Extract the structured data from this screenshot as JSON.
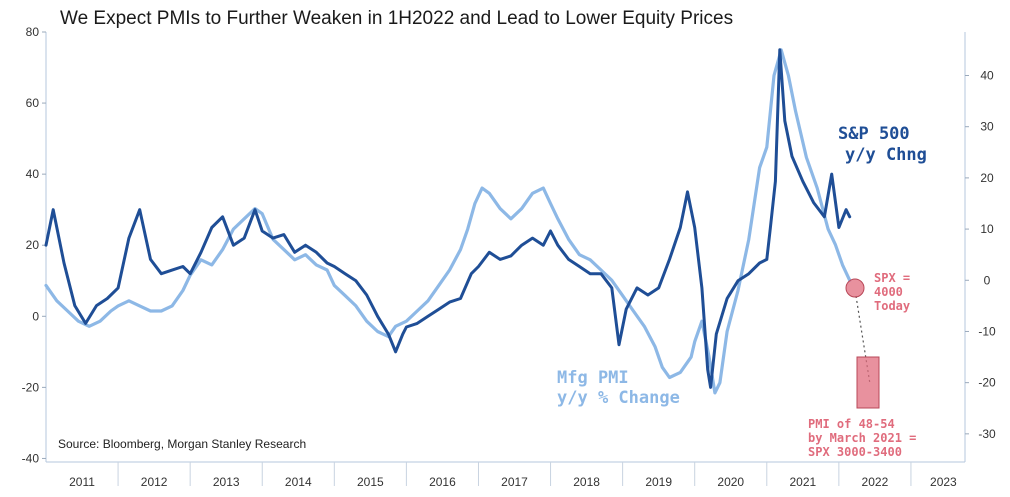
{
  "chart_data": {
    "type": "line",
    "title": "We Expect PMIs to Further Weaken in 1H2022 and Lead to Lower Equity Prices",
    "source": "Source: Bloomberg, Morgan Stanley Research",
    "x_ticks": [
      "2011",
      "2012",
      "2013",
      "2014",
      "2015",
      "2016",
      "2017",
      "2018",
      "2019",
      "2020",
      "2021",
      "2022",
      "2023"
    ],
    "x_range": [
      2011,
      2023.75
    ],
    "y_left": {
      "ticks": [
        80,
        60,
        40,
        20,
        0,
        -20,
        -40
      ],
      "range": [
        -41,
        80
      ]
    },
    "y_right": {
      "ticks": [
        40,
        30,
        20,
        10,
        0,
        -10,
        -20,
        -30
      ],
      "range": [
        -35.5,
        48.5
      ]
    },
    "series": [
      {
        "name": "S&P 500 y/y Chng",
        "label_lines": [
          "S&P 500",
          "y/y Chng"
        ],
        "axis": "left",
        "color": "#1f4e96",
        "points": [
          [
            2011.0,
            20
          ],
          [
            2011.1,
            30
          ],
          [
            2011.25,
            15
          ],
          [
            2011.4,
            3
          ],
          [
            2011.55,
            -2
          ],
          [
            2011.7,
            3
          ],
          [
            2011.85,
            5
          ],
          [
            2012.0,
            8
          ],
          [
            2012.15,
            22
          ],
          [
            2012.3,
            30
          ],
          [
            2012.45,
            16
          ],
          [
            2012.6,
            12
          ],
          [
            2012.75,
            13
          ],
          [
            2012.9,
            14
          ],
          [
            2013.0,
            12
          ],
          [
            2013.15,
            18
          ],
          [
            2013.3,
            25
          ],
          [
            2013.45,
            28
          ],
          [
            2013.6,
            20
          ],
          [
            2013.75,
            22
          ],
          [
            2013.9,
            30
          ],
          [
            2014.0,
            24
          ],
          [
            2014.15,
            22
          ],
          [
            2014.3,
            23
          ],
          [
            2014.45,
            18
          ],
          [
            2014.6,
            20
          ],
          [
            2014.75,
            18
          ],
          [
            2014.9,
            15
          ],
          [
            2015.0,
            14
          ],
          [
            2015.15,
            12
          ],
          [
            2015.3,
            10
          ],
          [
            2015.45,
            6
          ],
          [
            2015.6,
            0
          ],
          [
            2015.75,
            -5
          ],
          [
            2015.85,
            -10
          ],
          [
            2015.95,
            -5
          ],
          [
            2016.0,
            -3
          ],
          [
            2016.15,
            -2
          ],
          [
            2016.3,
            0
          ],
          [
            2016.45,
            2
          ],
          [
            2016.6,
            4
          ],
          [
            2016.75,
            5
          ],
          [
            2016.9,
            12
          ],
          [
            2017.0,
            14
          ],
          [
            2017.15,
            18
          ],
          [
            2017.3,
            16
          ],
          [
            2017.45,
            17
          ],
          [
            2017.6,
            20
          ],
          [
            2017.75,
            22
          ],
          [
            2017.9,
            20
          ],
          [
            2018.0,
            24
          ],
          [
            2018.1,
            20
          ],
          [
            2018.25,
            16
          ],
          [
            2018.4,
            14
          ],
          [
            2018.55,
            12
          ],
          [
            2018.7,
            12
          ],
          [
            2018.85,
            8
          ],
          [
            2018.95,
            -8
          ],
          [
            2019.05,
            2
          ],
          [
            2019.2,
            8
          ],
          [
            2019.35,
            6
          ],
          [
            2019.5,
            8
          ],
          [
            2019.65,
            16
          ],
          [
            2019.8,
            25
          ],
          [
            2019.9,
            35
          ],
          [
            2020.0,
            25
          ],
          [
            2020.1,
            8
          ],
          [
            2020.18,
            -15
          ],
          [
            2020.22,
            -20
          ],
          [
            2020.3,
            -5
          ],
          [
            2020.45,
            5
          ],
          [
            2020.6,
            10
          ],
          [
            2020.75,
            12
          ],
          [
            2020.9,
            15
          ],
          [
            2021.0,
            16
          ],
          [
            2021.05,
            25
          ],
          [
            2021.12,
            38
          ],
          [
            2021.18,
            75
          ],
          [
            2021.25,
            55
          ],
          [
            2021.35,
            45
          ],
          [
            2021.5,
            38
          ],
          [
            2021.65,
            32
          ],
          [
            2021.8,
            28
          ],
          [
            2021.9,
            40
          ],
          [
            2022.0,
            25
          ],
          [
            2022.1,
            30
          ],
          [
            2022.15,
            28
          ]
        ]
      },
      {
        "name": "Mfg PMI y/y % Change",
        "label_lines": [
          "Mfg PMI",
          "y/y % Change"
        ],
        "axis": "right",
        "color": "#8db8e6",
        "points": [
          [
            2011.0,
            -1
          ],
          [
            2011.15,
            -4
          ],
          [
            2011.3,
            -6
          ],
          [
            2011.45,
            -8
          ],
          [
            2011.6,
            -9
          ],
          [
            2011.75,
            -8
          ],
          [
            2011.9,
            -6
          ],
          [
            2012.0,
            -5
          ],
          [
            2012.15,
            -4
          ],
          [
            2012.3,
            -5
          ],
          [
            2012.45,
            -6
          ],
          [
            2012.6,
            -6
          ],
          [
            2012.75,
            -5
          ],
          [
            2012.9,
            -2
          ],
          [
            2013.0,
            1
          ],
          [
            2013.15,
            4
          ],
          [
            2013.3,
            3
          ],
          [
            2013.45,
            6
          ],
          [
            2013.6,
            10
          ],
          [
            2013.75,
            12
          ],
          [
            2013.9,
            14
          ],
          [
            2014.0,
            13
          ],
          [
            2014.15,
            8
          ],
          [
            2014.3,
            6
          ],
          [
            2014.45,
            4
          ],
          [
            2014.6,
            5
          ],
          [
            2014.75,
            3
          ],
          [
            2014.9,
            2
          ],
          [
            2015.0,
            -1
          ],
          [
            2015.15,
            -3
          ],
          [
            2015.3,
            -5
          ],
          [
            2015.45,
            -8
          ],
          [
            2015.6,
            -10
          ],
          [
            2015.75,
            -11
          ],
          [
            2015.85,
            -9
          ],
          [
            2016.0,
            -8
          ],
          [
            2016.15,
            -6
          ],
          [
            2016.3,
            -4
          ],
          [
            2016.45,
            -1
          ],
          [
            2016.6,
            2
          ],
          [
            2016.75,
            6
          ],
          [
            2016.85,
            10
          ],
          [
            2016.95,
            15
          ],
          [
            2017.05,
            18
          ],
          [
            2017.15,
            17
          ],
          [
            2017.3,
            14
          ],
          [
            2017.45,
            12
          ],
          [
            2017.6,
            14
          ],
          [
            2017.75,
            17
          ],
          [
            2017.9,
            18
          ],
          [
            2018.0,
            15
          ],
          [
            2018.1,
            12
          ],
          [
            2018.25,
            8
          ],
          [
            2018.4,
            5
          ],
          [
            2018.55,
            4
          ],
          [
            2018.7,
            2
          ],
          [
            2018.85,
            0
          ],
          [
            2019.0,
            -3
          ],
          [
            2019.15,
            -6
          ],
          [
            2019.3,
            -9
          ],
          [
            2019.45,
            -13
          ],
          [
            2019.55,
            -17
          ],
          [
            2019.65,
            -19
          ],
          [
            2019.8,
            -18
          ],
          [
            2019.95,
            -15
          ],
          [
            2020.0,
            -12
          ],
          [
            2020.1,
            -8
          ],
          [
            2020.2,
            -15
          ],
          [
            2020.28,
            -22
          ],
          [
            2020.35,
            -20
          ],
          [
            2020.45,
            -10
          ],
          [
            2020.6,
            -2
          ],
          [
            2020.75,
            8
          ],
          [
            2020.9,
            22
          ],
          [
            2021.0,
            26
          ],
          [
            2021.1,
            40
          ],
          [
            2021.2,
            45
          ],
          [
            2021.3,
            40
          ],
          [
            2021.4,
            33
          ],
          [
            2021.55,
            24
          ],
          [
            2021.7,
            18
          ],
          [
            2021.85,
            10
          ],
          [
            2021.95,
            7
          ],
          [
            2022.05,
            3
          ],
          [
            2022.15,
            0
          ]
        ]
      }
    ],
    "annotations": {
      "spx_now": "SPX = 4000 Today",
      "spx_now_lines": [
        "SPX =",
        "4000",
        "Today"
      ],
      "forecast": "PMI of 48-54 by March 2021 = SPX 3000-3400",
      "forecast_lines": [
        "PMI of 48-54",
        "by March 2021 =",
        "SPX 3000-3400"
      ],
      "annotation_color": "#e06c7d"
    }
  }
}
